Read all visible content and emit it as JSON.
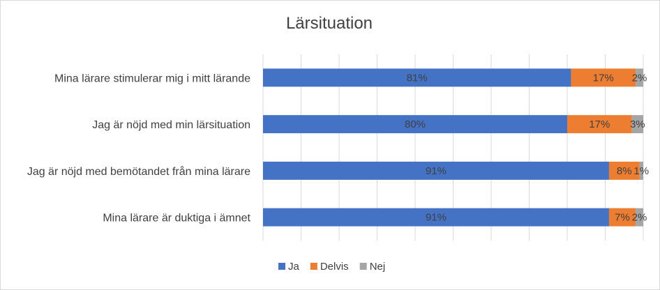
{
  "chart_data": {
    "type": "bar",
    "orientation": "horizontal",
    "stacked": "percent",
    "title": "Lärsituation",
    "categories": [
      "Mina lärare stimulerar mig i mitt lärande",
      "Jag är nöjd med min lärsituation",
      "Jag är nöjd med bemötandet från mina lärare",
      "Mina lärare är duktiga i ämnet"
    ],
    "series": [
      {
        "name": "Ja",
        "color": "#4472c4",
        "values": [
          81,
          80,
          91,
          91
        ],
        "labels": [
          "81%",
          "80%",
          "91%",
          "91%"
        ]
      },
      {
        "name": "Delvis",
        "color": "#ed7d31",
        "values": [
          17,
          17,
          8,
          7
        ],
        "labels": [
          "17%",
          "17%",
          "8%",
          "7%"
        ]
      },
      {
        "name": "Nej",
        "color": "#a5a5a5",
        "values": [
          2,
          3,
          1,
          2
        ],
        "labels": [
          "2%",
          "3%",
          "1%",
          "2%"
        ]
      }
    ],
    "xlim": [
      0,
      100
    ],
    "grid": true,
    "legend_position": "bottom"
  }
}
